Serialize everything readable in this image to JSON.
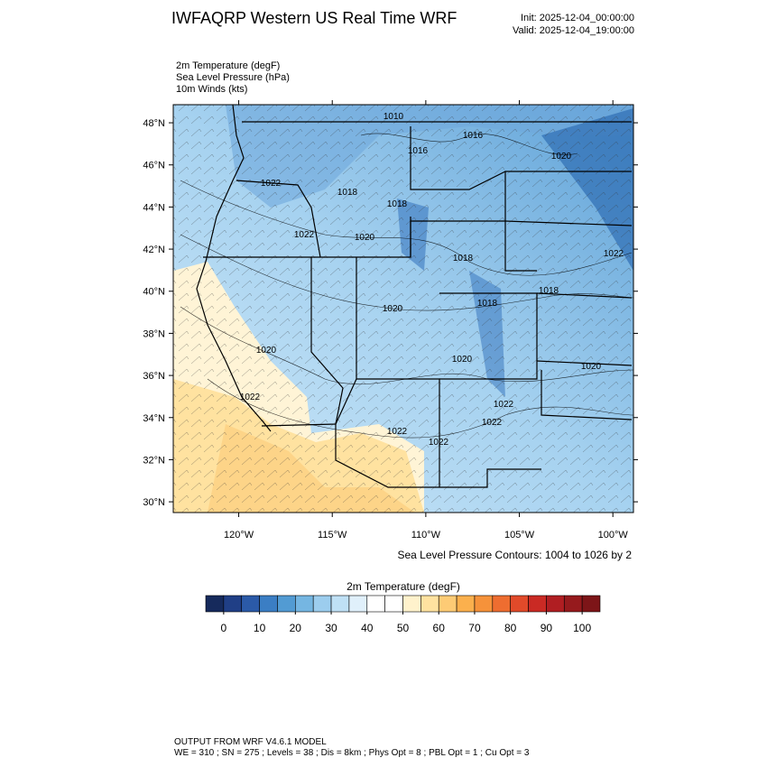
{
  "header": {
    "title": "IWFAQRP Western US Real Time WRF",
    "init": "Init: 2025-12-04_00:00:00",
    "valid": "Valid: 2025-12-04_19:00:00"
  },
  "fields": [
    "2m Temperature   (degF)",
    "Sea Level Pressure   (hPa)",
    "10m Winds   (kts)"
  ],
  "map": {
    "xlim": [
      -123.5,
      -98.9
    ],
    "ylim": [
      29.49,
      48.86
    ],
    "xticks": [
      {
        "value": -120,
        "label": "120°W"
      },
      {
        "value": -115,
        "label": "115°W"
      },
      {
        "value": -110,
        "label": "110°W"
      },
      {
        "value": -105,
        "label": "105°W"
      },
      {
        "value": -100,
        "label": "100°W"
      }
    ],
    "yticks": [
      {
        "value": 30,
        "label": "30°N"
      },
      {
        "value": 32,
        "label": "32°N"
      },
      {
        "value": 34,
        "label": "34°N"
      },
      {
        "value": 36,
        "label": "36°N"
      },
      {
        "value": 38,
        "label": "38°N"
      },
      {
        "value": 40,
        "label": "40°N"
      },
      {
        "value": 42,
        "label": "42°N"
      },
      {
        "value": 44,
        "label": "44°N"
      },
      {
        "value": 46,
        "label": "46°N"
      },
      {
        "value": 48,
        "label": "48°N"
      }
    ],
    "contour_labels": [
      1010,
      1016,
      1016,
      1020,
      1022,
      1018,
      1018,
      1022,
      1020,
      1018,
      1022,
      1018,
      1020,
      1018,
      1020,
      1020,
      1020,
      1022,
      1022,
      1022,
      1022,
      1022
    ],
    "caption": "Sea Level Pressure Contours: 1004 to 1026 by 2"
  },
  "colorbar": {
    "title": "2m Temperature  (degF)",
    "colors": [
      "#162a5c",
      "#203f86",
      "#2b5aa8",
      "#3b7ec4",
      "#529bd3",
      "#75b6e2",
      "#9ccdee",
      "#bfe0f5",
      "#e0f0fb",
      "#ffffff",
      "#ffffff",
      "#fff2cc",
      "#ffe2a0",
      "#fdcb75",
      "#fbb04d",
      "#f6923a",
      "#ee6d30",
      "#e14a2a",
      "#ca2a24",
      "#b01e22",
      "#961a1d",
      "#7d1518"
    ],
    "ticks": [
      0,
      10,
      20,
      30,
      40,
      50,
      60,
      70,
      80,
      90,
      100
    ]
  },
  "footer": {
    "line1": "OUTPUT FROM WRF V4.6.1 MODEL",
    "line2": "WE = 310 ; SN = 275 ; Levels = 38 ; Dis = 8km ; Phys Opt = 8 ; PBL Opt = 1 ; Cu Opt = 3"
  }
}
